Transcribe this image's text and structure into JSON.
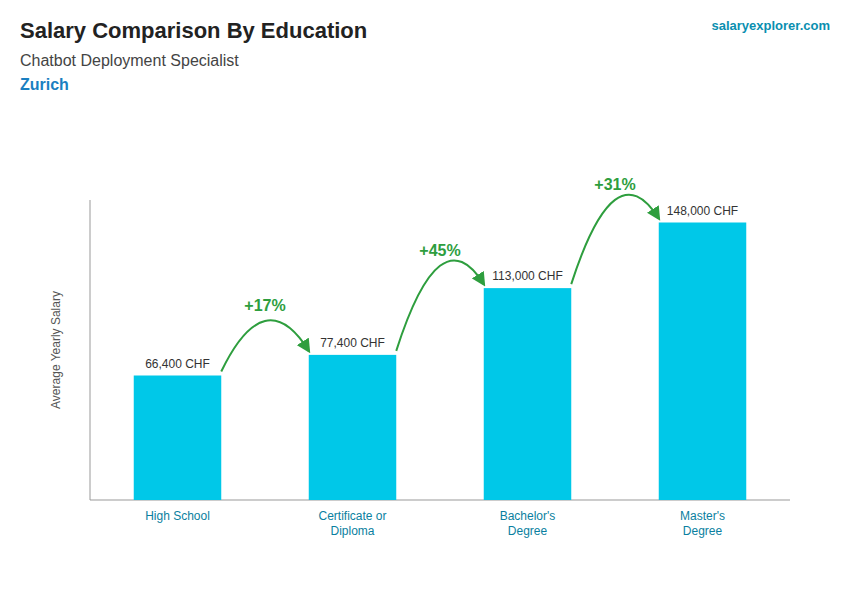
{
  "chart_data": {
    "type": "bar",
    "title": "Salary Comparison By Education",
    "subtitle": [
      "Chatbot Deployment Specialist",
      "Zurich"
    ],
    "source": "salaryexplorer.com",
    "y_label": "Average Yearly Salary",
    "categories": [
      "High School",
      "Certificate or\nDiploma",
      "Bachelor's\nDegree",
      "Master's\nDegree"
    ],
    "values": [
      66400,
      77400,
      113000,
      148000
    ],
    "value_labels": [
      "66,400 CHF",
      "77,400 CHF",
      "113,000 CHF",
      "148,000 CHF"
    ],
    "data_labels": true,
    "annotations": [
      "+17%",
      "+45%",
      "+31%"
    ],
    "color": "#00c8e8",
    "ylim": [
      0,
      160000
    ],
    "tick_labels": false,
    "grid": false
  }
}
